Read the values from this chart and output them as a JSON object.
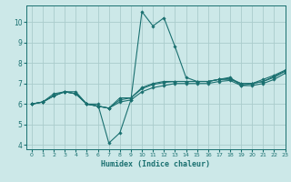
{
  "title": "",
  "xlabel": "Humidex (Indice chaleur)",
  "ylabel": "",
  "xlim": [
    -0.5,
    23
  ],
  "ylim": [
    3.8,
    10.8
  ],
  "yticks": [
    4,
    5,
    6,
    7,
    8,
    9,
    10
  ],
  "xticks": [
    0,
    1,
    2,
    3,
    4,
    5,
    6,
    7,
    8,
    9,
    10,
    11,
    12,
    13,
    14,
    15,
    16,
    17,
    18,
    19,
    20,
    21,
    22,
    23
  ],
  "bg_color": "#cce8e8",
  "grid_color": "#aacccc",
  "line_color": "#1a7070",
  "series": [
    {
      "x": [
        0,
        1,
        2,
        3,
        4,
        5,
        6,
        7,
        8,
        9,
        10,
        11,
        12,
        13,
        14,
        15,
        16,
        17,
        18,
        19,
        20,
        21,
        22,
        23
      ],
      "y": [
        6.0,
        6.1,
        6.5,
        6.6,
        6.6,
        6.0,
        6.0,
        4.1,
        4.6,
        6.2,
        10.5,
        9.8,
        10.2,
        8.8,
        7.3,
        7.1,
        7.1,
        7.2,
        7.3,
        6.9,
        7.0,
        7.2,
        7.4,
        7.65
      ]
    },
    {
      "x": [
        0,
        1,
        2,
        3,
        4,
        5,
        6,
        7,
        8,
        9,
        10,
        11,
        12,
        13,
        14,
        15,
        16,
        17,
        18,
        19,
        20,
        21,
        22,
        23
      ],
      "y": [
        6.0,
        6.1,
        6.4,
        6.6,
        6.5,
        6.0,
        5.9,
        5.8,
        6.3,
        6.3,
        6.8,
        7.0,
        7.1,
        7.1,
        7.1,
        7.1,
        7.1,
        7.2,
        7.2,
        7.0,
        7.0,
        7.1,
        7.3,
        7.6
      ]
    },
    {
      "x": [
        0,
        1,
        2,
        3,
        4,
        5,
        6,
        7,
        8,
        9,
        10,
        11,
        12,
        13,
        14,
        15,
        16,
        17,
        18,
        19,
        20,
        21,
        22,
        23
      ],
      "y": [
        6.0,
        6.1,
        6.4,
        6.6,
        6.5,
        6.0,
        5.9,
        5.8,
        6.2,
        6.3,
        6.75,
        6.95,
        7.05,
        7.1,
        7.1,
        7.1,
        7.1,
        7.2,
        7.25,
        7.0,
        7.0,
        7.1,
        7.35,
        7.6
      ]
    },
    {
      "x": [
        0,
        1,
        2,
        3,
        4,
        5,
        6,
        7,
        8,
        9,
        10,
        11,
        12,
        13,
        14,
        15,
        16,
        17,
        18,
        19,
        20,
        21,
        22,
        23
      ],
      "y": [
        6.0,
        6.1,
        6.4,
        6.6,
        6.5,
        6.0,
        5.9,
        5.8,
        6.1,
        6.2,
        6.6,
        6.8,
        6.9,
        7.0,
        7.0,
        7.0,
        7.0,
        7.1,
        7.15,
        6.9,
        6.9,
        7.0,
        7.2,
        7.5
      ]
    }
  ]
}
